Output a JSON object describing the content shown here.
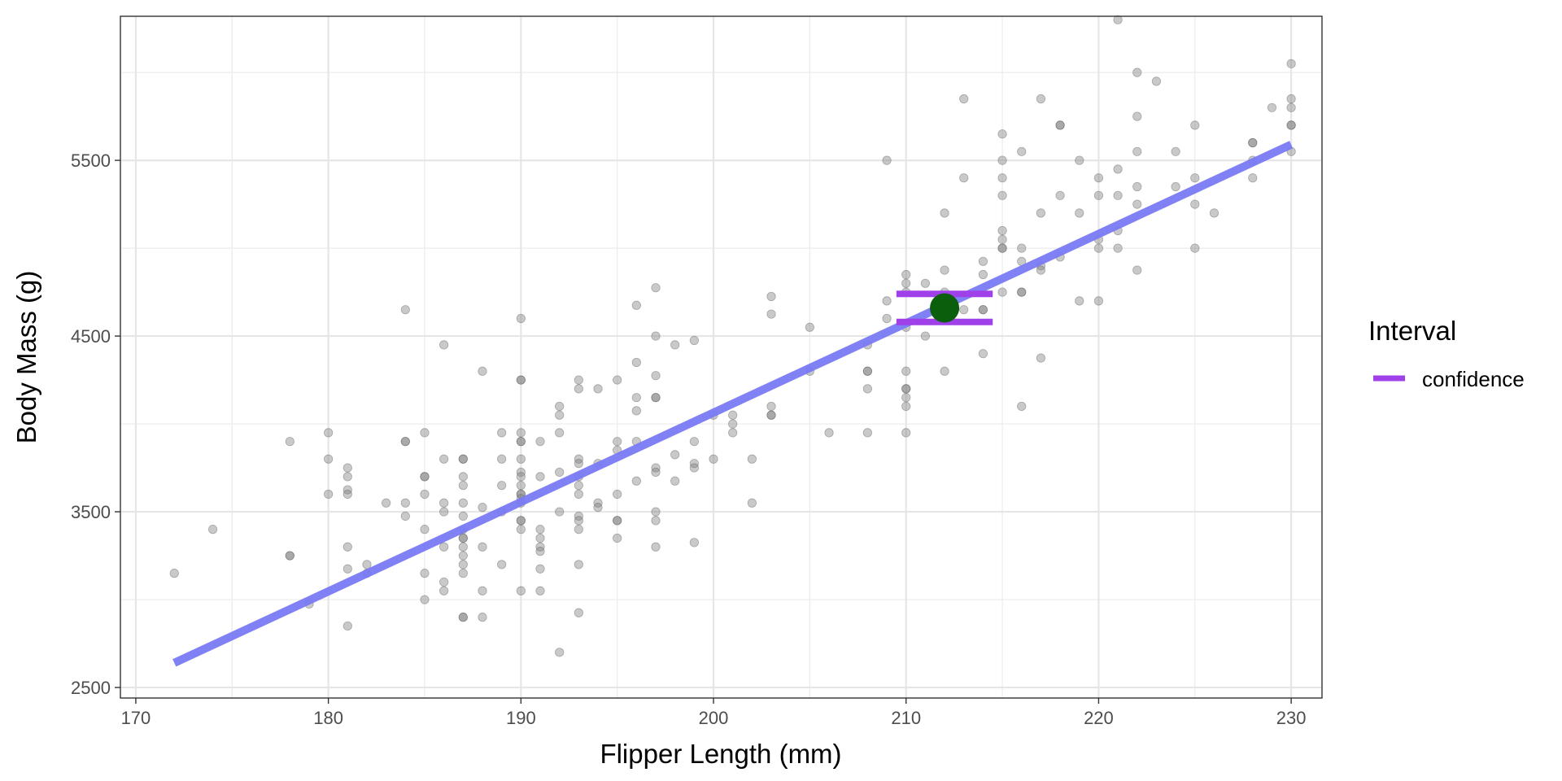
{
  "chart_data": {
    "type": "scatter",
    "xlabel": "Flipper Length (mm)",
    "ylabel": "Body Mass (g)",
    "xlim": [
      169.2,
      231.6
    ],
    "ylim": [
      2440,
      6320
    ],
    "x_ticks": [
      170,
      180,
      190,
      200,
      210,
      220,
      230
    ],
    "y_ticks": [
      2500,
      3500,
      4500,
      5500
    ],
    "grid": true,
    "legend": {
      "title": "Interval",
      "position": "right",
      "entries": [
        {
          "label": "confidence",
          "color": "#a040e8"
        }
      ]
    },
    "colors": {
      "points": "#7f7f7f",
      "regression_line": "#7a7af5",
      "interval": "#a040e8",
      "prediction_point": "#0b5e0b"
    },
    "regression_line": {
      "x": [
        172,
        230
      ],
      "y": [
        2640,
        5590
      ]
    },
    "prediction": {
      "x": 212,
      "y": 4660,
      "interval": "confidence",
      "lower": 4580,
      "upper": 4740,
      "x_from": 209.5,
      "x_to": 214.5
    },
    "points": [
      [
        172,
        3150
      ],
      [
        174,
        3400
      ],
      [
        178,
        3900
      ],
      [
        178,
        3250
      ],
      [
        178,
        3250
      ],
      [
        179,
        2975
      ],
      [
        180,
        3950
      ],
      [
        180,
        3800
      ],
      [
        180,
        3600
      ],
      [
        181,
        3750
      ],
      [
        181,
        3700
      ],
      [
        181,
        3625
      ],
      [
        181,
        3600
      ],
      [
        181,
        3300
      ],
      [
        181,
        3175
      ],
      [
        181,
        2850
      ],
      [
        182,
        3200
      ],
      [
        182,
        3150
      ],
      [
        183,
        3550
      ],
      [
        184,
        4650
      ],
      [
        184,
        3900
      ],
      [
        184,
        3900
      ],
      [
        184,
        3550
      ],
      [
        184,
        3475
      ],
      [
        185,
        3950
      ],
      [
        185,
        3700
      ],
      [
        185,
        3700
      ],
      [
        185,
        3600
      ],
      [
        185,
        3400
      ],
      [
        185,
        3150
      ],
      [
        185,
        3000
      ],
      [
        186,
        4450
      ],
      [
        186,
        3800
      ],
      [
        186,
        3550
      ],
      [
        186,
        3500
      ],
      [
        186,
        3300
      ],
      [
        186,
        3100
      ],
      [
        186,
        3050
      ],
      [
        187,
        3800
      ],
      [
        187,
        3800
      ],
      [
        187,
        3700
      ],
      [
        187,
        3650
      ],
      [
        187,
        3550
      ],
      [
        187,
        3475
      ],
      [
        187,
        3400
      ],
      [
        187,
        3350
      ],
      [
        187,
        3350
      ],
      [
        187,
        3300
      ],
      [
        187,
        3250
      ],
      [
        187,
        3200
      ],
      [
        187,
        3150
      ],
      [
        187,
        2900
      ],
      [
        187,
        2900
      ],
      [
        188,
        4300
      ],
      [
        188,
        3525
      ],
      [
        188,
        3300
      ],
      [
        188,
        3050
      ],
      [
        188,
        2900
      ],
      [
        189,
        3950
      ],
      [
        189,
        3800
      ],
      [
        189,
        3650
      ],
      [
        189,
        3500
      ],
      [
        189,
        3200
      ],
      [
        190,
        4600
      ],
      [
        190,
        4250
      ],
      [
        190,
        4250
      ],
      [
        190,
        3950
      ],
      [
        190,
        3900
      ],
      [
        190,
        3900
      ],
      [
        190,
        3800
      ],
      [
        190,
        3725
      ],
      [
        190,
        3700
      ],
      [
        190,
        3650
      ],
      [
        190,
        3600
      ],
      [
        190,
        3600
      ],
      [
        190,
        3575
      ],
      [
        190,
        3550
      ],
      [
        190,
        3450
      ],
      [
        190,
        3450
      ],
      [
        190,
        3400
      ],
      [
        190,
        3050
      ],
      [
        191,
        3900
      ],
      [
        191,
        3700
      ],
      [
        191,
        3400
      ],
      [
        191,
        3350
      ],
      [
        191,
        3300
      ],
      [
        191,
        3275
      ],
      [
        191,
        3175
      ],
      [
        191,
        3050
      ],
      [
        192,
        4100
      ],
      [
        192,
        4050
      ],
      [
        192,
        3950
      ],
      [
        192,
        3725
      ],
      [
        192,
        3500
      ],
      [
        192,
        2700
      ],
      [
        193,
        4250
      ],
      [
        193,
        4200
      ],
      [
        193,
        3800
      ],
      [
        193,
        3775
      ],
      [
        193,
        3700
      ],
      [
        193,
        3650
      ],
      [
        193,
        3600
      ],
      [
        193,
        3475
      ],
      [
        193,
        3450
      ],
      [
        193,
        3400
      ],
      [
        193,
        3200
      ],
      [
        193,
        2925
      ],
      [
        194,
        4200
      ],
      [
        194,
        3775
      ],
      [
        194,
        3550
      ],
      [
        194,
        3525
      ],
      [
        195,
        4250
      ],
      [
        195,
        3900
      ],
      [
        195,
        3850
      ],
      [
        195,
        3600
      ],
      [
        195,
        3450
      ],
      [
        195,
        3450
      ],
      [
        195,
        3350
      ],
      [
        196,
        4675
      ],
      [
        196,
        4350
      ],
      [
        196,
        4150
      ],
      [
        196,
        4075
      ],
      [
        196,
        3900
      ],
      [
        196,
        3675
      ],
      [
        197,
        4775
      ],
      [
        197,
        4500
      ],
      [
        197,
        4275
      ],
      [
        197,
        4150
      ],
      [
        197,
        4150
      ],
      [
        197,
        3750
      ],
      [
        197,
        3725
      ],
      [
        197,
        3500
      ],
      [
        197,
        3450
      ],
      [
        197,
        3300
      ],
      [
        198,
        4450
      ],
      [
        198,
        3825
      ],
      [
        198,
        3675
      ],
      [
        199,
        4475
      ],
      [
        199,
        3900
      ],
      [
        199,
        3775
      ],
      [
        199,
        3750
      ],
      [
        199,
        3325
      ],
      [
        200,
        4050
      ],
      [
        200,
        3800
      ],
      [
        201,
        4050
      ],
      [
        201,
        4000
      ],
      [
        201,
        3950
      ],
      [
        202,
        3800
      ],
      [
        202,
        3550
      ],
      [
        203,
        4725
      ],
      [
        203,
        4625
      ],
      [
        203,
        4100
      ],
      [
        203,
        4050
      ],
      [
        203,
        4050
      ],
      [
        205,
        4550
      ],
      [
        205,
        4300
      ],
      [
        206,
        3950
      ],
      [
        208,
        4450
      ],
      [
        208,
        4300
      ],
      [
        208,
        4300
      ],
      [
        208,
        4200
      ],
      [
        208,
        3950
      ],
      [
        209,
        5500
      ],
      [
        209,
        4700
      ],
      [
        209,
        4600
      ],
      [
        210,
        4850
      ],
      [
        210,
        4800
      ],
      [
        210,
        4750
      ],
      [
        210,
        4550
      ],
      [
        210,
        4300
      ],
      [
        210,
        4200
      ],
      [
        210,
        4200
      ],
      [
        210,
        4150
      ],
      [
        210,
        4100
      ],
      [
        210,
        3950
      ],
      [
        211,
        4800
      ],
      [
        211,
        4500
      ],
      [
        212,
        5200
      ],
      [
        212,
        4875
      ],
      [
        212,
        4750
      ],
      [
        212,
        4300
      ],
      [
        213,
        5850
      ],
      [
        213,
        5400
      ],
      [
        213,
        4650
      ],
      [
        214,
        4925
      ],
      [
        214,
        4850
      ],
      [
        214,
        4650
      ],
      [
        214,
        4650
      ],
      [
        214,
        4400
      ],
      [
        215,
        5650
      ],
      [
        215,
        5500
      ],
      [
        215,
        5400
      ],
      [
        215,
        5300
      ],
      [
        215,
        5100
      ],
      [
        215,
        5050
      ],
      [
        215,
        5000
      ],
      [
        215,
        5000
      ],
      [
        215,
        4750
      ],
      [
        216,
        5550
      ],
      [
        216,
        5000
      ],
      [
        216,
        4925
      ],
      [
        216,
        4750
      ],
      [
        216,
        4750
      ],
      [
        216,
        4100
      ],
      [
        217,
        5850
      ],
      [
        217,
        5200
      ],
      [
        217,
        4900
      ],
      [
        217,
        4875
      ],
      [
        217,
        4375
      ],
      [
        218,
        5700
      ],
      [
        218,
        5700
      ],
      [
        218,
        5300
      ],
      [
        218,
        4950
      ],
      [
        219,
        5500
      ],
      [
        219,
        5200
      ],
      [
        219,
        4700
      ],
      [
        220,
        5400
      ],
      [
        220,
        5300
      ],
      [
        220,
        5050
      ],
      [
        220,
        5000
      ],
      [
        220,
        4700
      ],
      [
        221,
        6300
      ],
      [
        221,
        5450
      ],
      [
        221,
        5300
      ],
      [
        221,
        5100
      ],
      [
        221,
        5000
      ],
      [
        222,
        6000
      ],
      [
        222,
        5750
      ],
      [
        222,
        5550
      ],
      [
        222,
        5350
      ],
      [
        222,
        5250
      ],
      [
        222,
        4875
      ],
      [
        223,
        5950
      ],
      [
        224,
        5550
      ],
      [
        224,
        5350
      ],
      [
        225,
        5700
      ],
      [
        225,
        5400
      ],
      [
        225,
        5250
      ],
      [
        225,
        5000
      ],
      [
        226,
        5200
      ],
      [
        228,
        5600
      ],
      [
        228,
        5600
      ],
      [
        228,
        5500
      ],
      [
        228,
        5400
      ],
      [
        229,
        5800
      ],
      [
        230,
        6050
      ],
      [
        230,
        5850
      ],
      [
        230,
        5800
      ],
      [
        230,
        5700
      ],
      [
        230,
        5700
      ],
      [
        230,
        5550
      ]
    ]
  }
}
